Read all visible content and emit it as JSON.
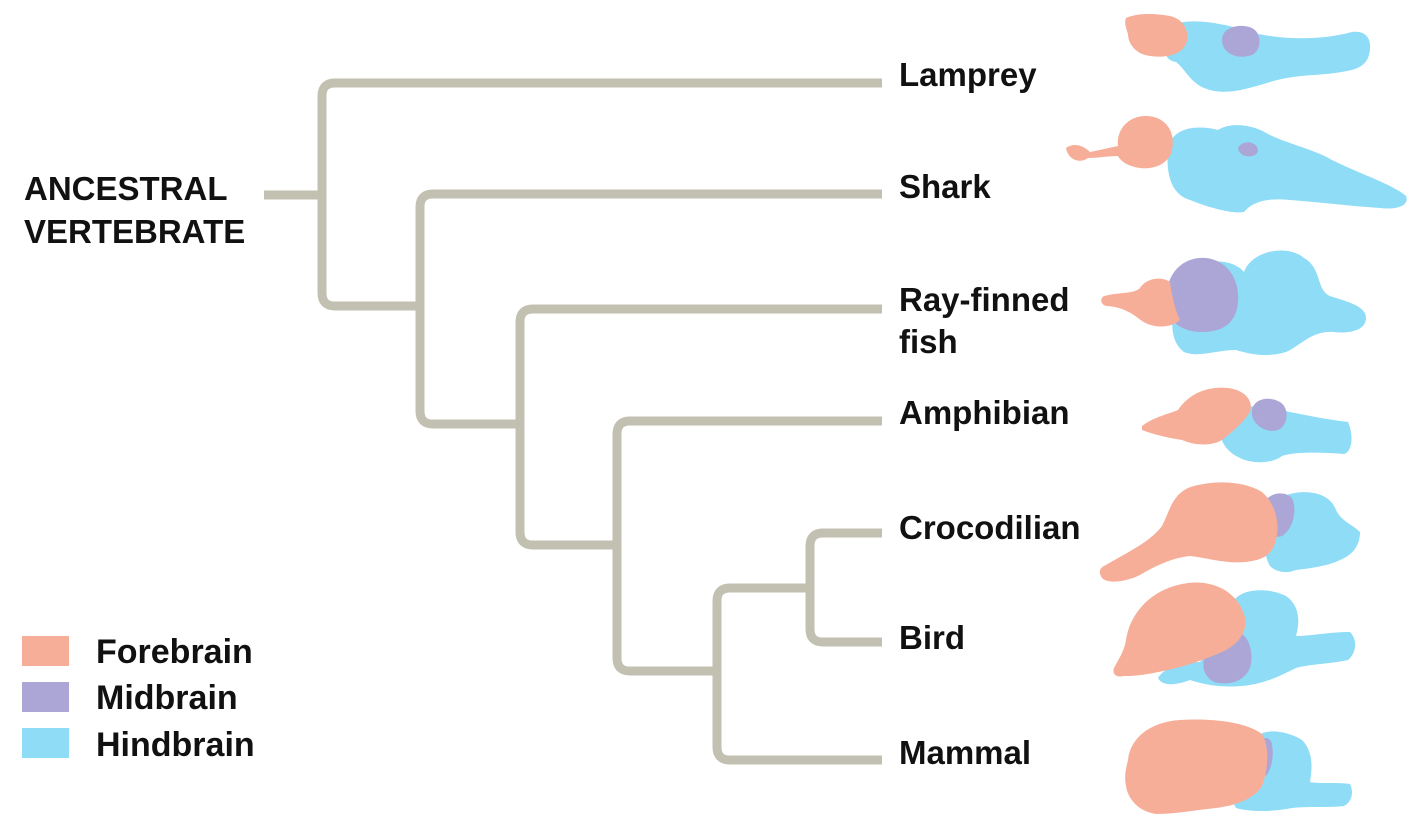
{
  "root": {
    "line1": "ANCESTRAL",
    "line2": "VERTEBRATE"
  },
  "taxa": {
    "lamprey": "Lamprey",
    "shark": "Shark",
    "rayfinned_line1": "Ray-finned",
    "rayfinned_line2": "fish",
    "amphibian": "Amphibian",
    "crocodilian": "Crocodilian",
    "bird": "Bird",
    "mammal": "Mammal"
  },
  "legend": {
    "forebrain": "Forebrain",
    "midbrain": "Midbrain",
    "hindbrain": "Hindbrain"
  },
  "colors": {
    "forebrain": "#f7ae98",
    "midbrain": "#aca6d6",
    "hindbrain": "#8fdcf7",
    "branch": "#c2c0b0"
  }
}
